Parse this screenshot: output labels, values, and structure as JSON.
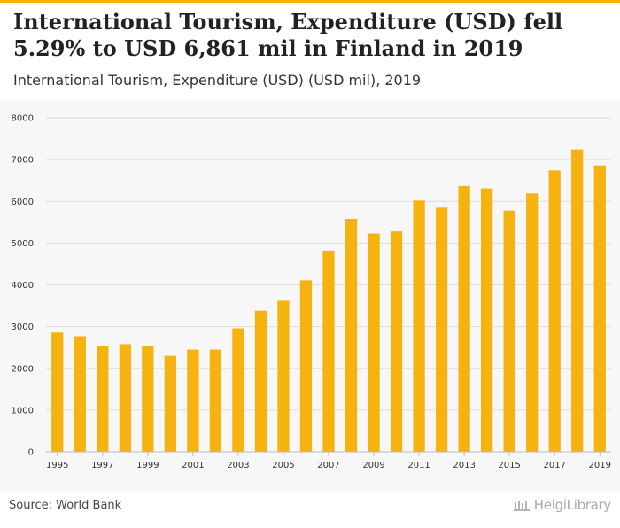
{
  "header": {
    "title": "International Tourism, Expenditure (USD) fell 5.29% to USD 6,861 mil in Finland in 2019",
    "subtitle": "International Tourism, Expenditure (USD) (USD mil), 2019"
  },
  "colors": {
    "bar": "#f6b20e",
    "grid": "#dddddd",
    "accent": "#f4b400"
  },
  "chart_data": {
    "type": "bar",
    "title": "International Tourism, Expenditure (USD) fell 5.29% to USD 6,861 mil in Finland in 2019",
    "subtitle": "International Tourism, Expenditure (USD) (USD mil), 2019",
    "xlabel": "",
    "ylabel": "",
    "ylim": [
      0,
      8000
    ],
    "yticks": [
      0,
      1000,
      2000,
      3000,
      4000,
      5000,
      6000,
      7000,
      8000
    ],
    "grid": true,
    "categories": [
      "1995",
      "1996",
      "1997",
      "1998",
      "1999",
      "2000",
      "2001",
      "2002",
      "2003",
      "2004",
      "2005",
      "2006",
      "2007",
      "2008",
      "2009",
      "2010",
      "2011",
      "2012",
      "2013",
      "2014",
      "2015",
      "2016",
      "2017",
      "2018",
      "2019"
    ],
    "xtick_labels": [
      "1995",
      "1997",
      "1999",
      "2001",
      "2003",
      "2005",
      "2007",
      "2009",
      "2011",
      "2013",
      "2015",
      "2017",
      "2019"
    ],
    "values": [
      2860,
      2770,
      2540,
      2580,
      2540,
      2300,
      2450,
      2450,
      2960,
      3380,
      3620,
      4110,
      4820,
      5580,
      5230,
      5280,
      6020,
      5850,
      6370,
      6310,
      5780,
      6190,
      6740,
      7244,
      6861
    ]
  },
  "footer": {
    "source": "Source: World Bank",
    "logo_text": "HelgiLibrary"
  }
}
